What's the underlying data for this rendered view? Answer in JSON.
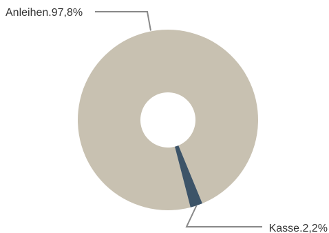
{
  "chart_data": {
    "type": "pie",
    "title": "",
    "donut": true,
    "slices": [
      {
        "label": "Anleihen",
        "value": 97.8,
        "display": "Anleihen.97,8%",
        "color": "#c8c1b1"
      },
      {
        "label": "Kasse",
        "value": 2.2,
        "display": "Kasse.2,2%",
        "color": "#3d5468"
      }
    ],
    "leader_line_color": "#888888",
    "legend": "none"
  }
}
